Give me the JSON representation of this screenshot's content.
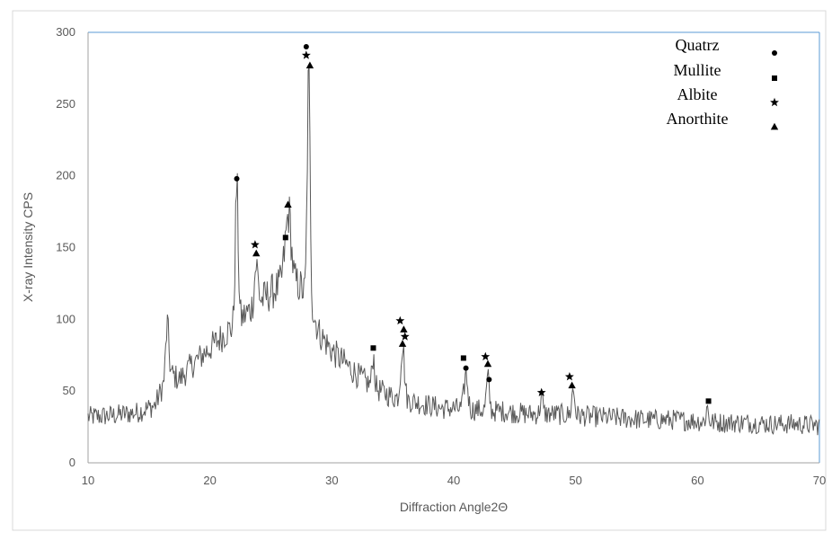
{
  "chart_data": {
    "type": "line",
    "title": "",
    "xlabel": "Diffraction Angle2Θ",
    "ylabel": "X-ray Intensity CPS",
    "xlim": [
      10,
      70
    ],
    "ylim": [
      0,
      300
    ],
    "x_ticks": [
      10,
      20,
      30,
      40,
      50,
      60,
      70
    ],
    "y_ticks": [
      0,
      50,
      100,
      150,
      200,
      250,
      300
    ],
    "grid": false,
    "legend_position": "top-right",
    "line_color": "#595959",
    "background_profile": {
      "x": [
        10,
        12,
        14,
        15.5,
        16.2,
        16.5,
        16.8,
        17.5,
        18.5,
        19.5,
        20.5,
        21.5,
        22.5,
        23.5,
        24.5,
        25.5,
        26.8,
        27.5,
        28.3,
        29.0,
        30.0,
        31,
        32,
        33,
        34,
        35,
        36,
        37,
        38,
        39,
        40,
        41,
        42,
        43,
        44,
        45,
        46,
        48,
        50,
        52,
        54,
        56,
        58,
        60,
        62,
        64,
        66,
        68,
        70
      ],
      "y": [
        32,
        33,
        35,
        40,
        55,
        75,
        62,
        58,
        68,
        76,
        84,
        92,
        100,
        108,
        115,
        122,
        128,
        122,
        108,
        90,
        78,
        70,
        62,
        55,
        50,
        46,
        44,
        42,
        40,
        38,
        38,
        37,
        37,
        36,
        36,
        35,
        34,
        34,
        33,
        32,
        31,
        30,
        30,
        29,
        28,
        28,
        27,
        27,
        26
      ]
    },
    "noise_amplitude": 9,
    "peaks": [
      {
        "center": 16.5,
        "height": 22,
        "width": 0.12
      },
      {
        "center": 22.2,
        "height": 95,
        "width": 0.12
      },
      {
        "center": 23.8,
        "height": 28,
        "width": 0.15
      },
      {
        "center": 26.2,
        "height": 20,
        "width": 0.2
      },
      {
        "center": 26.5,
        "height": 40,
        "width": 0.18
      },
      {
        "center": 28.1,
        "height": 155,
        "width": 0.12
      },
      {
        "center": 33.4,
        "height": 22,
        "width": 0.1
      },
      {
        "center": 35.8,
        "height": 38,
        "width": 0.15
      },
      {
        "center": 41.0,
        "height": 25,
        "width": 0.15
      },
      {
        "center": 42.8,
        "height": 22,
        "width": 0.12
      },
      {
        "center": 47.2,
        "height": 12,
        "width": 0.1
      },
      {
        "center": 49.8,
        "height": 18,
        "width": 0.12
      },
      {
        "center": 60.8,
        "height": 10,
        "width": 0.1
      }
    ],
    "series": [
      {
        "name": "Quatrz",
        "symbol": "●",
        "points": [
          [
            22.2,
            198
          ],
          [
            27.9,
            290
          ],
          [
            41.0,
            66
          ],
          [
            42.9,
            58
          ]
        ]
      },
      {
        "name": "Mullite",
        "symbol": "■",
        "points": [
          [
            26.2,
            157
          ],
          [
            33.4,
            80
          ],
          [
            40.8,
            73
          ],
          [
            60.9,
            43
          ]
        ]
      },
      {
        "name": "Albite",
        "symbol": "★",
        "points": [
          [
            23.7,
            152
          ],
          [
            27.9,
            284
          ],
          [
            35.6,
            99
          ],
          [
            36.0,
            88
          ],
          [
            42.6,
            74
          ],
          [
            47.2,
            49
          ],
          [
            49.5,
            60
          ]
        ]
      },
      {
        "name": "Anorthite",
        "symbol": "▲",
        "points": [
          [
            23.8,
            146
          ],
          [
            26.4,
            180
          ],
          [
            28.2,
            277
          ],
          [
            35.9,
            93
          ],
          [
            35.8,
            83
          ],
          [
            42.8,
            69
          ],
          [
            49.7,
            54
          ]
        ]
      }
    ]
  }
}
